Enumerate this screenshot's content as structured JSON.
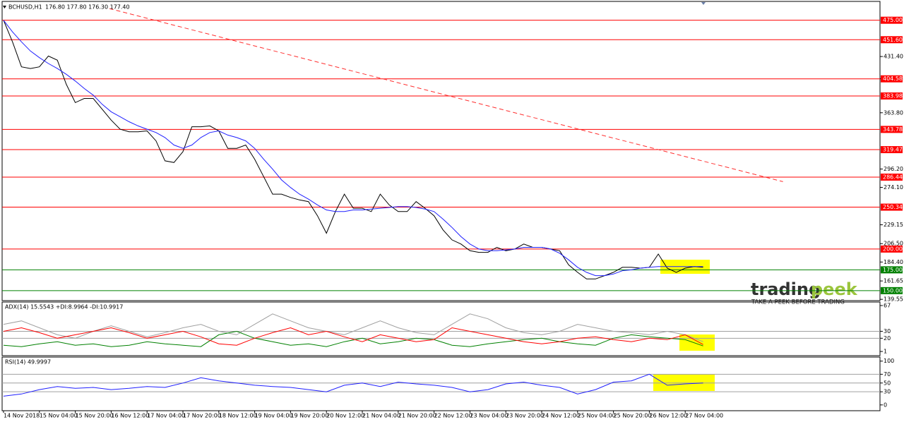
{
  "chart_data": [
    {
      "type": "line",
      "title": "BCHUSD,H1",
      "quote": "176.80 177.80 176.30 177.40",
      "categories": [
        "14 Nov 2018",
        null,
        null,
        null,
        "15 Nov 04:00",
        null,
        null,
        null,
        "15 Nov 20:00",
        null,
        null,
        null,
        "16 Nov 12:00",
        null,
        null,
        null,
        "17 Nov 04:00",
        null,
        null,
        null,
        "17 Nov 20:00",
        null,
        null,
        null,
        "18 Nov 12:00",
        null,
        null,
        null,
        "19 Nov 04:00",
        null,
        null,
        null,
        "19 Nov 20:00",
        null,
        null,
        null,
        "20 Nov 12:00",
        null,
        null,
        null,
        "21 Nov 04:00",
        null,
        null,
        null,
        "21 Nov 20:00",
        null,
        null,
        null,
        "22 Nov 12:00",
        null,
        null,
        null,
        "23 Nov 04:00",
        null,
        null,
        null,
        "23 Nov 20:00",
        null,
        null,
        null,
        "24 Nov 12:00",
        null,
        null,
        null,
        "25 Nov 04:00",
        null,
        null,
        null,
        "25 Nov 20:00",
        null,
        null,
        null,
        "26 Nov 12:00",
        null,
        null,
        null,
        "27 Nov 04:00",
        null,
        null
      ],
      "series": [
        {
          "color": "#000000",
          "values": [
            475,
            449,
            419,
            417,
            419,
            432,
            427,
            398,
            376,
            381,
            381,
            368,
            355,
            344,
            341,
            341,
            342,
            330,
            306,
            304,
            317,
            347,
            347,
            348,
            342,
            321,
            321,
            325,
            308,
            287,
            266,
            266,
            262,
            259,
            257,
            240,
            219,
            245,
            266,
            249,
            249,
            245,
            266,
            253,
            245,
            245,
            257,
            249,
            240,
            223,
            211,
            206,
            198,
            196,
            196,
            202,
            198,
            200,
            206,
            202,
            202,
            200,
            198,
            181,
            172,
            164,
            164,
            168,
            172,
            178,
            178,
            177,
            178,
            194,
            177,
            172,
            177,
            179,
            178
          ]
        },
        {
          "color": "#2020ff",
          "values": [
            475,
            461,
            449,
            438,
            430,
            423,
            417,
            410,
            402,
            393,
            385,
            374,
            365,
            359,
            353,
            348,
            344,
            340,
            334,
            325,
            321,
            325,
            334,
            340,
            342,
            337,
            334,
            330,
            321,
            308,
            296,
            283,
            274,
            266,
            260,
            253,
            247,
            245,
            245,
            247,
            247,
            248,
            249,
            250,
            251,
            251,
            250,
            248,
            245,
            236,
            226,
            215,
            206,
            200,
            198,
            198,
            199,
            200,
            202,
            202,
            202,
            200,
            195,
            187,
            178,
            172,
            168,
            168,
            170,
            174,
            175,
            177,
            178,
            179,
            179,
            179,
            179,
            179,
            179
          ]
        }
      ],
      "ylim": [
        138,
        490
      ],
      "yticks": [
        {
          "value": 431.4,
          "label": "431.40"
        },
        {
          "value": 404.65,
          "label": "404.65"
        },
        {
          "value": 363.8,
          "label": "363.80"
        },
        {
          "value": 296.2,
          "label": "296.20"
        },
        {
          "value": 274.1,
          "label": "274.10"
        },
        {
          "value": 229.15,
          "label": "229.15"
        },
        {
          "value": 206.5,
          "label": "206.50"
        },
        {
          "value": 184.4,
          "label": "184.40"
        },
        {
          "value": 161.65,
          "label": "161.65"
        },
        {
          "value": 139.55,
          "label": "139.55"
        }
      ],
      "levels": [
        {
          "value": 475,
          "label": "475.00",
          "color": "#ff0000"
        },
        {
          "value": 451.6,
          "label": "451.60",
          "color": "#ff0000"
        },
        {
          "value": 404.58,
          "label": "404.58",
          "color": "#ff0000"
        },
        {
          "value": 383.98,
          "label": "383.98",
          "color": "#ff0000"
        },
        {
          "value": 343.78,
          "label": "343.78",
          "color": "#ff0000"
        },
        {
          "value": 319.47,
          "label": "319.47",
          "color": "#ff0000"
        },
        {
          "value": 286.44,
          "label": "286.44",
          "color": "#ff0000"
        },
        {
          "value": 250.34,
          "label": "250.34",
          "color": "#ff0000"
        },
        {
          "value": 200,
          "label": "200.00",
          "color": "#ff0000"
        },
        {
          "value": 175,
          "label": "175.00",
          "color": "#008000"
        },
        {
          "value": 150,
          "label": "150.00",
          "color": "#008000"
        }
      ],
      "trendline": {
        "from": [
          11.8,
          489
        ],
        "to": [
          86.9,
          281
        ],
        "color": "#ff3030"
      }
    },
    {
      "type": "line",
      "title": "ADX(14) 15.5543 +DI:8.9964 -DI:10.9917",
      "series": [
        {
          "color": "#a0a0a0",
          "values": [
            40,
            45,
            35,
            25,
            20,
            30,
            38,
            30,
            22,
            28,
            35,
            40,
            30,
            25,
            40,
            55,
            45,
            35,
            30,
            25,
            35,
            45,
            35,
            28,
            25,
            40,
            55,
            48,
            35,
            28,
            25,
            30,
            40,
            35,
            30,
            28,
            25,
            30,
            25,
            15
          ]
        },
        {
          "color": "#008000",
          "values": [
            10,
            8,
            12,
            15,
            10,
            12,
            8,
            10,
            15,
            12,
            10,
            8,
            25,
            30,
            20,
            15,
            10,
            12,
            8,
            15,
            20,
            12,
            15,
            20,
            18,
            10,
            8,
            12,
            15,
            18,
            20,
            15,
            12,
            10,
            20,
            25,
            22,
            20,
            18,
            9
          ]
        },
        {
          "color": "#ff0000",
          "values": [
            30,
            35,
            28,
            20,
            25,
            30,
            35,
            28,
            20,
            25,
            30,
            22,
            12,
            10,
            20,
            28,
            35,
            25,
            30,
            22,
            15,
            25,
            20,
            15,
            18,
            35,
            30,
            25,
            20,
            15,
            12,
            15,
            20,
            22,
            18,
            15,
            20,
            18,
            25,
            11
          ]
        }
      ],
      "ylim": [
        -3,
        70
      ],
      "yticks": [
        67,
        30,
        20,
        1
      ],
      "levels": [
        30,
        20
      ]
    },
    {
      "type": "line",
      "title": "RSI(14) 49.9997",
      "series": [
        {
          "color": "#2020ff",
          "values": [
            20,
            25,
            35,
            42,
            38,
            40,
            35,
            38,
            42,
            40,
            50,
            62,
            55,
            50,
            45,
            42,
            40,
            35,
            30,
            45,
            50,
            42,
            52,
            48,
            45,
            40,
            30,
            35,
            48,
            52,
            45,
            40,
            25,
            35,
            52,
            55,
            70,
            45,
            48,
            50
          ]
        }
      ],
      "ylim": [
        -10,
        106
      ],
      "yticks": [
        100,
        70,
        50,
        30,
        0
      ],
      "levels": [
        70,
        50,
        30
      ]
    }
  ],
  "watermark": {
    "brand_a": "trading",
    "brand_b": "peek",
    "tagline": "TAKE A PEEK BEFORE TRADING"
  }
}
